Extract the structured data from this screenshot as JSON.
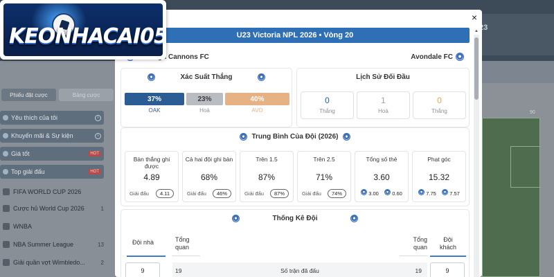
{
  "background": {
    "header_number": "23",
    "sidebar_tabs": [
      "Phiếu đặt cược",
      "Bảng cược"
    ],
    "sidebar_menu": [
      {
        "label": "Yêu thích của tôi",
        "badge": "i"
      },
      {
        "label": "Khuyến mãi & Sự kiện",
        "badge": "i"
      },
      {
        "label": "Giá tốt",
        "badge": "HOT"
      },
      {
        "label": "Top giải đấu",
        "badge": "HOT"
      }
    ],
    "sidebar_leagues": [
      {
        "label": "FIFA WORLD CUP 2026",
        "count": ""
      },
      {
        "label": "Cược hủ World Cup 2026",
        "count": "1"
      },
      {
        "label": "WNBA",
        "count": ""
      },
      {
        "label": "NBA Summer League",
        "count": "13"
      },
      {
        "label": "Giải quần vợt Wimbledo...",
        "count": "2"
      }
    ],
    "field_value": "90"
  },
  "logo": {
    "text": "KEONHACAI05"
  },
  "modal": {
    "close_label": "×",
    "match_title": "U23 Victoria NPL 2026  •  Vòng 20",
    "home_team": "Oakleigh Cannons FC",
    "away_team": "Avondale FC",
    "win_prob": {
      "title": "Xác Suất Thắng",
      "home_pct": "37%",
      "draw_pct": "23%",
      "away_pct": "40%",
      "home_label": "OAK",
      "draw_label": "Hoà",
      "away_label": "AVO",
      "colors": {
        "home": "#2c5c94",
        "draw": "#b9bcc0",
        "away": "#e7b283"
      },
      "fractions": [
        0.37,
        0.23,
        0.4
      ]
    },
    "h2h": {
      "title": "Lịch Sử Đối Đầu",
      "items": [
        {
          "value": "0",
          "label": "Thắng",
          "color": "#2c5c94"
        },
        {
          "value": "1",
          "label": "Hoà",
          "color": "#9ea3a8"
        },
        {
          "value": "0",
          "label": "Thắng",
          "color": "#e0a468"
        }
      ]
    },
    "averages": {
      "title": "Trung Bình Của Đội (2026)",
      "foot_label": "Giải đấu",
      "items": [
        {
          "title": "Bàn thắng ghi được",
          "value": "4.89",
          "pill": "4.11"
        },
        {
          "title": "Cả hai đội ghi bàn",
          "value": "68%",
          "pill": "46%"
        },
        {
          "title": "Trên 1.5",
          "value": "87%",
          "pill": "87%"
        },
        {
          "title": "Trên 2.5",
          "value": "71%",
          "pill": "74%"
        },
        {
          "title": "Tổng số thẻ",
          "value": "3.60",
          "home": "3.00",
          "away": "0.60"
        },
        {
          "title": "Phạt góc",
          "value": "15.32",
          "home": "7.75",
          "away": "7.57"
        }
      ]
    },
    "team_stats": {
      "title": "Thống Kê Đội",
      "home_head": "Đội nhà",
      "overview_left": "Tổng quan",
      "overview_right": "Tổng quan",
      "away_head": "Đội khách",
      "rows": [
        {
          "label": "Số trận đã đấu",
          "home": "9",
          "home_total": "19",
          "away_total": "19",
          "away": "9"
        }
      ]
    }
  }
}
